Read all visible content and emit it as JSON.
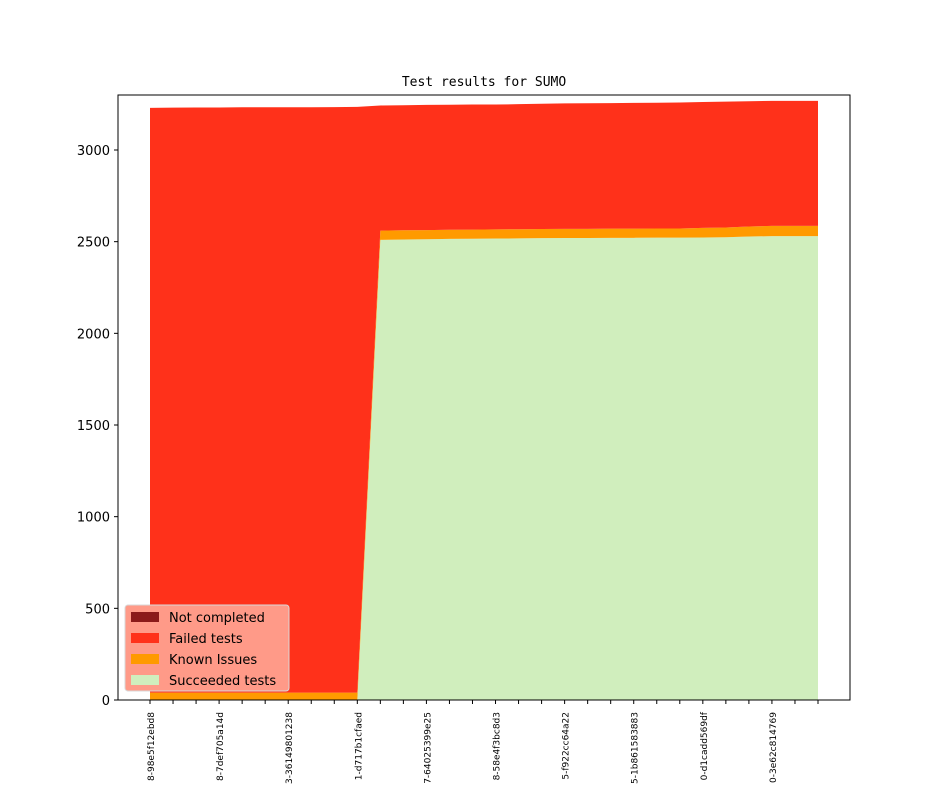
{
  "chart_data": {
    "type": "area",
    "stacked": true,
    "title": "Test results for SUMO",
    "xlabel": "",
    "ylabel": "",
    "ylim": [
      0,
      3300
    ],
    "yticks": [
      0,
      500,
      1000,
      1500,
      2000,
      2500,
      3000
    ],
    "xtick_labels": [
      "8-98e5f12ebd8",
      "8-7def705a14d",
      "3-36149801238",
      "1-d717b1cfaed",
      "7-64025399e25",
      "8-58e4f3bc8d3",
      "5-f922cc64a22",
      "5-1b861583883",
      "0-d1cadd569df",
      "0-3e62c814769"
    ],
    "num_points": 30,
    "series": [
      {
        "name": "Succeeded tests",
        "color": "#d0eebd",
        "values": [
          0,
          0,
          0,
          0,
          0,
          0,
          0,
          0,
          0,
          0,
          2510,
          2512,
          2513,
          2515,
          2516,
          2517,
          2518,
          2519,
          2520,
          2520,
          2521,
          2521,
          2522,
          2522,
          2523,
          2524,
          2528,
          2530,
          2530,
          2530
        ]
      },
      {
        "name": "Known Issues",
        "color": "#ff9a00",
        "values": [
          40,
          40,
          40,
          40,
          40,
          40,
          40,
          40,
          40,
          40,
          50,
          50,
          50,
          50,
          50,
          50,
          50,
          50,
          50,
          50,
          50,
          50,
          50,
          50,
          52,
          53,
          55,
          56,
          56,
          56
        ]
      },
      {
        "name": "Failed tests",
        "color": "#ff311a",
        "values": [
          3190,
          3191,
          3192,
          3192,
          3193,
          3193,
          3193,
          3193,
          3194,
          3195,
          683,
          682,
          683,
          682,
          682,
          681,
          682,
          683,
          684,
          685,
          685,
          686,
          686,
          687,
          687,
          687,
          683,
          682,
          682,
          682
        ]
      },
      {
        "name": "Not completed",
        "color": "#8b1a1a",
        "values": [
          0,
          0,
          0,
          0,
          0,
          0,
          0,
          0,
          0,
          0,
          0,
          0,
          0,
          0,
          0,
          0,
          0,
          0,
          0,
          0,
          0,
          0,
          0,
          0,
          0,
          0,
          0,
          0,
          0,
          0
        ]
      }
    ],
    "legend": {
      "placement": "lower-left",
      "background": "#ff9a88",
      "entries": [
        "Not completed",
        "Failed tests",
        "Known Issues",
        "Succeeded tests"
      ]
    }
  }
}
